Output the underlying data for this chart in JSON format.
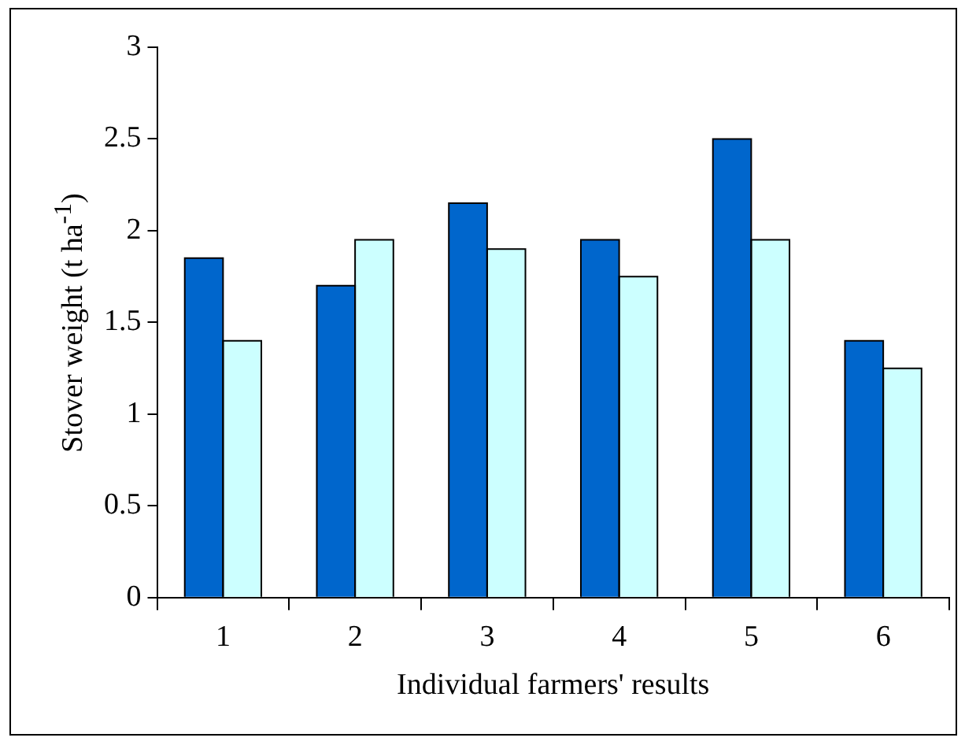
{
  "chart_data": {
    "type": "bar",
    "xlabel": "Individual farmers' results",
    "ylabel": "Stover weight (t ha$^{-1}$)",
    "categories": [
      "1",
      "2",
      "3",
      "4",
      "5",
      "6"
    ],
    "series": [
      {
        "color": "#0066cc",
        "values": [
          1.85,
          1.7,
          2.15,
          1.95,
          2.5,
          1.4
        ]
      },
      {
        "color": "#ccffff",
        "values": [
          1.4,
          1.95,
          1.9,
          1.75,
          1.95,
          1.25
        ]
      }
    ],
    "ylim": [
      0,
      3
    ],
    "yticks": [
      0,
      0.5,
      1,
      1.5,
      2,
      2.5,
      3
    ],
    "grid": false,
    "legend": false
  }
}
